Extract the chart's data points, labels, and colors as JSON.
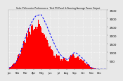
{
  "title": "Solar PV/Inverter Performance  Total PV Panel & Running Average Power Output",
  "bg_color": "#e8e8e8",
  "plot_bg": "#e8e8e8",
  "grid_color": "#ffffff",
  "bar_color": "#ff0000",
  "line_color": "#0000ff",
  "ylim": [
    0,
    3500
  ],
  "ytick_labels": [
    "500",
    "1000",
    "1500",
    "2000",
    "2500",
    "3000",
    "3500"
  ],
  "ytick_vals": [
    500,
    1000,
    1500,
    2000,
    2500,
    3000,
    3500
  ],
  "bar_heights": [
    80,
    120,
    150,
    200,
    280,
    350,
    420,
    500,
    600,
    700,
    820,
    950,
    1100,
    1250,
    1400,
    1550,
    1680,
    1820,
    1950,
    2100,
    2250,
    2380,
    2500,
    2620,
    2750,
    2850,
    2950,
    3050,
    3100,
    3200,
    3280,
    3350,
    3400,
    3380,
    3200,
    3050,
    3200,
    3380,
    3420,
    3350,
    3050,
    2900,
    2750,
    2600,
    2500,
    2350,
    2200,
    2050,
    1950,
    1800,
    1700,
    1580,
    1500,
    1420,
    1380,
    1250,
    1180,
    1100,
    1050,
    980,
    920,
    880,
    830,
    800,
    760,
    720,
    700,
    680,
    650,
    630,
    620,
    600,
    720,
    800,
    900,
    1000,
    1100,
    1200,
    1280,
    1180,
    1050,
    980,
    920,
    870,
    820,
    780,
    740,
    700,
    660,
    620,
    580,
    540,
    500,
    460,
    420,
    380,
    340,
    300,
    250,
    200,
    160,
    130,
    100,
    80,
    60,
    50,
    40,
    30,
    20,
    10,
    5,
    3,
    2,
    1,
    0,
    0,
    0,
    0,
    0,
    0
  ],
  "avg_heights": [
    80,
    100,
    117,
    138,
    170,
    208,
    258,
    312,
    378,
    450,
    540,
    635,
    745,
    870,
    1003,
    1143,
    1278,
    1420,
    1558,
    1700,
    1850,
    1988,
    2107,
    2230,
    2360,
    2480,
    2593,
    2705,
    2800,
    2893,
    2975,
    3047,
    3107,
    3157,
    3190,
    3197,
    3200,
    3218,
    3233,
    3233,
    3160,
    3070,
    2983,
    2887,
    2787,
    2680,
    2570,
    2453,
    2340,
    2220,
    2090,
    1967,
    1853,
    1743,
    1637,
    1527,
    1420,
    1317,
    1218,
    1130,
    1048,
    975,
    907,
    847,
    793,
    742,
    700,
    665,
    635,
    610,
    590,
    575,
    600,
    633,
    680,
    737,
    800,
    867,
    933,
    967,
    987,
    977,
    950,
    917,
    877,
    840,
    800,
    758,
    715,
    668,
    620,
    572,
    523,
    473,
    420,
    368,
    315,
    260,
    207,
    153,
    107,
    72,
    47,
    30,
    18,
    10,
    7,
    5,
    3,
    2,
    1,
    1,
    1,
    0,
    0,
    0,
    0,
    0,
    0,
    0
  ],
  "n_points": 120,
  "x_tick_positions": [
    0,
    10,
    20,
    30,
    40,
    50,
    60,
    70,
    80,
    90,
    100,
    110
  ],
  "x_tick_labels": [
    "Jan",
    "Feb",
    "Mar",
    "Apr",
    "May",
    "Jun",
    "Jul",
    "Aug",
    "Sep",
    "Oct",
    "Nov",
    "Dec"
  ]
}
